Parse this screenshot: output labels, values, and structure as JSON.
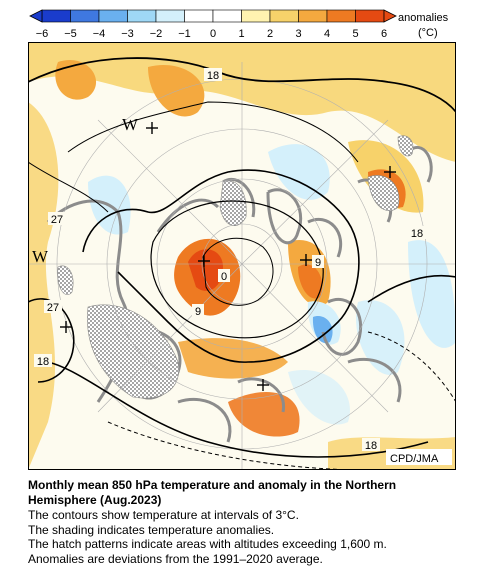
{
  "colorbar": {
    "ticks": [
      "−6",
      "−5",
      "−4",
      "−3",
      "−2",
      "−1",
      "0",
      "1",
      "2",
      "3",
      "4",
      "5",
      "6"
    ],
    "colors": [
      "#1a3ccc",
      "#3f78e0",
      "#6ab0ef",
      "#9fd8f6",
      "#d4f0fb",
      "#ffffff",
      "#ffffff",
      "#fff3b0",
      "#f7d26a",
      "#f4a93f",
      "#ee7a22",
      "#e54a12"
    ],
    "label_line1": "anomalies",
    "label_line2": "(°C)"
  },
  "map": {
    "contour_labels": {
      "a": "18",
      "b": "27",
      "c": "27",
      "d": "18",
      "e": "9",
      "f": "0",
      "g": "9",
      "h": "18",
      "i": "18"
    },
    "symbols": {
      "w1": "W",
      "w2": "W"
    },
    "credit": "CPD/JMA"
  },
  "caption": {
    "title": "Monthly mean 850 hPa temperature and anomaly in the Northern Hemisphere (Aug.2023)",
    "lines": [
      "The contours show temperature at intervals of 3°C.",
      "The shading indicates temperature anomalies.",
      "The hatch patterns indicate areas with altitudes exceeding 1,600 m.",
      "Anomalies are deviations from the 1991–2020 average."
    ]
  }
}
